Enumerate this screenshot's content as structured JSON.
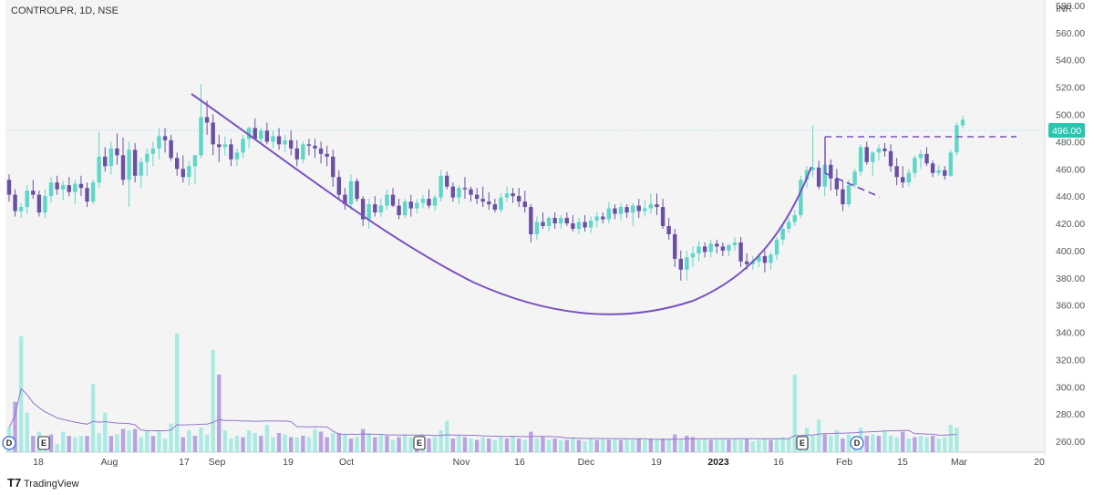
{
  "title": "CONTROLPR, 1D, NSE",
  "currency": "INR",
  "brand": "TradingView",
  "last_price": "496.00",
  "colors": {
    "up": "#5ed6c8",
    "down": "#6a4fa3",
    "pattern": "#7b52c0",
    "vol_up": "#a9ebe3",
    "vol_down": "#b7a3e0",
    "price_label": "#26c6b0",
    "vol_ma": "#9575cd"
  },
  "y_axis": {
    "ticks": [
      "580.00",
      "560.00",
      "540.00",
      "520.00",
      "500.00",
      "480.00",
      "460.00",
      "440.00",
      "420.00",
      "400.00",
      "380.00",
      "360.00",
      "340.00",
      "320.00",
      "300.00",
      "280.00",
      "260.00"
    ]
  },
  "x_axis": {
    "labels": [
      "18",
      "Aug",
      "17",
      "Sep",
      "19",
      "Oct",
      "Nov",
      "16",
      "Dec",
      "19",
      "2023",
      "16",
      "Feb",
      "15",
      "Mar",
      "20"
    ]
  },
  "events": [
    {
      "type": "dividend",
      "label": "D"
    },
    {
      "type": "earnings",
      "label": "E"
    },
    {
      "type": "earnings",
      "label": "E"
    },
    {
      "type": "earnings",
      "label": "E"
    },
    {
      "type": "dividend",
      "label": "D"
    }
  ],
  "chart_data": {
    "type": "candlestick",
    "symbol": "CONTROLPR",
    "interval": "1D",
    "exchange": "NSE",
    "ylim": [
      252,
      584
    ],
    "price": [
      [
        452,
        456,
        436,
        441
      ],
      [
        441,
        445,
        425,
        429
      ],
      [
        429,
        435,
        424,
        432
      ],
      [
        432,
        448,
        427,
        444
      ],
      [
        444,
        452,
        438,
        441
      ],
      [
        441,
        444,
        425,
        428
      ],
      [
        428,
        445,
        424,
        440
      ],
      [
        440,
        454,
        435,
        450
      ],
      [
        450,
        455,
        441,
        445
      ],
      [
        445,
        451,
        437,
        448
      ],
      [
        448,
        454,
        440,
        443
      ],
      [
        443,
        452,
        434,
        449
      ],
      [
        449,
        455,
        440,
        446
      ],
      [
        446,
        450,
        432,
        436
      ],
      [
        436,
        452,
        434,
        450
      ],
      [
        450,
        487,
        446,
        469
      ],
      [
        469,
        476,
        458,
        462
      ],
      [
        462,
        480,
        456,
        475
      ],
      [
        475,
        486,
        463,
        470
      ],
      [
        470,
        483,
        448,
        452
      ],
      [
        452,
        480,
        432,
        474
      ],
      [
        474,
        479,
        450,
        455
      ],
      [
        455,
        468,
        446,
        465
      ],
      [
        465,
        475,
        455,
        471
      ],
      [
        471,
        480,
        462,
        475
      ],
      [
        475,
        490,
        467,
        484
      ],
      [
        484,
        490,
        472,
        481
      ],
      [
        481,
        485,
        466,
        468
      ],
      [
        468,
        472,
        455,
        460
      ],
      [
        460,
        470,
        450,
        454
      ],
      [
        454,
        466,
        448,
        462
      ],
      [
        462,
        470,
        449,
        470
      ],
      [
        470,
        522,
        468,
        498
      ],
      [
        498,
        510,
        485,
        494
      ],
      [
        494,
        500,
        470,
        478
      ],
      [
        478,
        485,
        465,
        476
      ],
      [
        476,
        484,
        470,
        478
      ],
      [
        478,
        482,
        462,
        467
      ],
      [
        467,
        475,
        462,
        472
      ],
      [
        472,
        485,
        468,
        482
      ],
      [
        482,
        491,
        475,
        490
      ],
      [
        490,
        497,
        482,
        482
      ],
      [
        482,
        490,
        478,
        488
      ],
      [
        488,
        494,
        478,
        480
      ],
      [
        480,
        488,
        475,
        484
      ],
      [
        484,
        490,
        474,
        478
      ],
      [
        478,
        485,
        472,
        481
      ],
      [
        481,
        488,
        470,
        475
      ],
      [
        475,
        481,
        462,
        467
      ],
      [
        467,
        480,
        464,
        478
      ],
      [
        478,
        482,
        470,
        477
      ],
      [
        477,
        482,
        468,
        475
      ],
      [
        475,
        480,
        464,
        471
      ],
      [
        471,
        477,
        462,
        469
      ],
      [
        469,
        474,
        447,
        454
      ],
      [
        454,
        459,
        438,
        441
      ],
      [
        441,
        446,
        430,
        434
      ],
      [
        434,
        456,
        430,
        451
      ],
      [
        451,
        453,
        436,
        438
      ],
      [
        438,
        440,
        418,
        423
      ],
      [
        423,
        438,
        416,
        434
      ],
      [
        434,
        440,
        425,
        428
      ],
      [
        428,
        438,
        425,
        433
      ],
      [
        433,
        445,
        430,
        441
      ],
      [
        441,
        446,
        432,
        433
      ],
      [
        433,
        438,
        423,
        426
      ],
      [
        426,
        438,
        424,
        436
      ],
      [
        436,
        441,
        425,
        431
      ],
      [
        431,
        438,
        427,
        435
      ],
      [
        435,
        441,
        431,
        438
      ],
      [
        438,
        445,
        431,
        433
      ],
      [
        433,
        441,
        429,
        439
      ],
      [
        439,
        459,
        436,
        455
      ],
      [
        455,
        458,
        445,
        447
      ],
      [
        447,
        450,
        436,
        439
      ],
      [
        439,
        448,
        434,
        446
      ],
      [
        446,
        454,
        438,
        445
      ],
      [
        445,
        447,
        436,
        441
      ],
      [
        441,
        446,
        434,
        438
      ],
      [
        438,
        447,
        432,
        436
      ],
      [
        436,
        443,
        430,
        434
      ],
      [
        434,
        438,
        428,
        430
      ],
      [
        430,
        442,
        428,
        439
      ],
      [
        439,
        447,
        436,
        442
      ],
      [
        442,
        446,
        435,
        440
      ],
      [
        440,
        446,
        432,
        436
      ],
      [
        436,
        444,
        428,
        432
      ],
      [
        432,
        434,
        406,
        412
      ],
      [
        412,
        425,
        408,
        421
      ],
      [
        421,
        428,
        416,
        418
      ],
      [
        418,
        425,
        414,
        424
      ],
      [
        424,
        428,
        416,
        420
      ],
      [
        420,
        426,
        416,
        424
      ],
      [
        424,
        428,
        418,
        420
      ],
      [
        420,
        426,
        414,
        416
      ],
      [
        416,
        424,
        412,
        421
      ],
      [
        421,
        426,
        414,
        417
      ],
      [
        417,
        425,
        413,
        422
      ],
      [
        422,
        428,
        417,
        425
      ],
      [
        425,
        428,
        420,
        423
      ],
      [
        423,
        436,
        420,
        431
      ],
      [
        431,
        434,
        423,
        427
      ],
      [
        427,
        435,
        422,
        432
      ],
      [
        432,
        434,
        424,
        428
      ],
      [
        428,
        435,
        418,
        433
      ],
      [
        433,
        438,
        424,
        429
      ],
      [
        429,
        437,
        425,
        431
      ],
      [
        431,
        442,
        427,
        434
      ],
      [
        434,
        442,
        426,
        432
      ],
      [
        432,
        438,
        416,
        418
      ],
      [
        418,
        424,
        408,
        412
      ],
      [
        412,
        416,
        388,
        394
      ],
      [
        394,
        400,
        378,
        386
      ],
      [
        386,
        400,
        378,
        395
      ],
      [
        395,
        403,
        388,
        398
      ],
      [
        398,
        407,
        392,
        403
      ],
      [
        403,
        406,
        395,
        399
      ],
      [
        399,
        408,
        395,
        405
      ],
      [
        405,
        408,
        398,
        403
      ],
      [
        403,
        406,
        396,
        400
      ],
      [
        400,
        405,
        396,
        404
      ],
      [
        404,
        410,
        400,
        406
      ],
      [
        406,
        410,
        388,
        392
      ],
      [
        392,
        398,
        386,
        390
      ],
      [
        390,
        396,
        386,
        392
      ],
      [
        392,
        398,
        388,
        396
      ],
      [
        396,
        400,
        384,
        391
      ],
      [
        391,
        399,
        386,
        397
      ],
      [
        397,
        410,
        393,
        408
      ],
      [
        408,
        419,
        404,
        416
      ],
      [
        416,
        424,
        413,
        421
      ],
      [
        421,
        430,
        418,
        426
      ],
      [
        426,
        455,
        424,
        452
      ],
      [
        452,
        462,
        446,
        459
      ],
      [
        459,
        492,
        454,
        461
      ],
      [
        461,
        466,
        445,
        447
      ],
      [
        447,
        465,
        440,
        463
      ],
      [
        463,
        467,
        444,
        453
      ],
      [
        453,
        460,
        440,
        445
      ],
      [
        445,
        452,
        429,
        434
      ],
      [
        434,
        452,
        432,
        448
      ],
      [
        448,
        460,
        446,
        458
      ],
      [
        458,
        478,
        455,
        476
      ],
      [
        476,
        480,
        463,
        465
      ],
      [
        465,
        473,
        455,
        472
      ],
      [
        472,
        478,
        466,
        475
      ],
      [
        475,
        479,
        469,
        473
      ],
      [
        473,
        478,
        458,
        462
      ],
      [
        462,
        468,
        448,
        454
      ],
      [
        454,
        462,
        446,
        450
      ],
      [
        450,
        460,
        447,
        457
      ],
      [
        457,
        470,
        454,
        468
      ],
      [
        468,
        474,
        460,
        471
      ],
      [
        471,
        476,
        462,
        464
      ],
      [
        464,
        466,
        454,
        457
      ],
      [
        457,
        463,
        455,
        459
      ],
      [
        459,
        462,
        452,
        455
      ],
      [
        455,
        474,
        454,
        472
      ],
      [
        472,
        494,
        470,
        492
      ],
      [
        492,
        499,
        490,
        496
      ]
    ],
    "volume": [
      [
        270,
        1
      ],
      [
        289,
        0
      ],
      [
        337,
        1
      ],
      [
        281,
        1
      ],
      [
        264,
        0
      ],
      [
        267,
        1
      ],
      [
        263,
        1
      ],
      [
        265,
        0
      ],
      [
        258,
        1
      ],
      [
        267,
        1
      ],
      [
        264,
        0
      ],
      [
        263,
        1
      ],
      [
        264,
        1
      ],
      [
        264,
        0
      ],
      [
        302,
        1
      ],
      [
        266,
        1
      ],
      [
        281,
        1
      ],
      [
        264,
        0
      ],
      [
        265,
        1
      ],
      [
        269,
        0
      ],
      [
        268,
        1
      ],
      [
        269,
        0
      ],
      [
        263,
        1
      ],
      [
        268,
        1
      ],
      [
        264,
        0
      ],
      [
        268,
        1
      ],
      [
        262,
        1
      ],
      [
        273,
        1
      ],
      [
        339,
        1
      ],
      [
        263,
        0
      ],
      [
        268,
        1
      ],
      [
        264,
        0
      ],
      [
        270,
        1
      ],
      [
        265,
        1
      ],
      [
        327,
        1
      ],
      [
        309,
        0
      ],
      [
        268,
        1
      ],
      [
        262,
        1
      ],
      [
        264,
        1
      ],
      [
        263,
        0
      ],
      [
        268,
        1
      ],
      [
        266,
        1
      ],
      [
        264,
        0
      ],
      [
        272,
        1
      ],
      [
        263,
        1
      ],
      [
        266,
        0
      ],
      [
        265,
        1
      ],
      [
        263,
        0
      ],
      [
        263,
        1
      ],
      [
        264,
        0
      ],
      [
        263,
        1
      ],
      [
        269,
        1
      ],
      [
        267,
        0
      ],
      [
        263,
        0
      ],
      [
        266,
        1
      ],
      [
        266,
        0
      ],
      [
        265,
        1
      ],
      [
        262,
        0
      ],
      [
        263,
        1
      ],
      [
        269,
        0
      ],
      [
        266,
        1
      ],
      [
        263,
        0
      ],
      [
        265,
        1
      ],
      [
        264,
        0
      ],
      [
        261,
        1
      ],
      [
        263,
        0
      ],
      [
        265,
        1
      ],
      [
        263,
        1
      ],
      [
        262,
        0
      ],
      [
        265,
        1
      ],
      [
        262,
        0
      ],
      [
        263,
        1
      ],
      [
        268,
        1
      ],
      [
        275,
        1
      ],
      [
        262,
        0
      ],
      [
        264,
        1
      ],
      [
        263,
        0
      ],
      [
        262,
        1
      ],
      [
        261,
        0
      ],
      [
        263,
        1
      ],
      [
        262,
        0
      ],
      [
        261,
        1
      ],
      [
        263,
        1
      ],
      [
        262,
        0
      ],
      [
        264,
        1
      ],
      [
        262,
        0
      ],
      [
        261,
        1
      ],
      [
        267,
        0
      ],
      [
        262,
        1
      ],
      [
        263,
        0
      ],
      [
        261,
        1
      ],
      [
        262,
        0
      ],
      [
        261,
        1
      ],
      [
        261,
        0
      ],
      [
        262,
        1
      ],
      [
        261,
        0
      ],
      [
        260,
        1
      ],
      [
        262,
        1
      ],
      [
        261,
        0
      ],
      [
        262,
        1
      ],
      [
        261,
        0
      ],
      [
        262,
        1
      ],
      [
        261,
        0
      ],
      [
        262,
        1
      ],
      [
        261,
        1
      ],
      [
        262,
        0
      ],
      [
        261,
        1
      ],
      [
        262,
        0
      ],
      [
        261,
        1
      ],
      [
        262,
        0
      ],
      [
        262,
        1
      ],
      [
        265,
        0
      ],
      [
        261,
        1
      ],
      [
        264,
        0
      ],
      [
        263,
        0
      ],
      [
        261,
        1
      ],
      [
        262,
        1
      ],
      [
        261,
        0
      ],
      [
        262,
        1
      ],
      [
        262,
        1
      ],
      [
        261,
        0
      ],
      [
        262,
        1
      ],
      [
        261,
        1
      ],
      [
        262,
        0
      ],
      [
        260,
        1
      ],
      [
        261,
        1
      ],
      [
        262,
        1
      ],
      [
        261,
        0
      ],
      [
        262,
        1
      ],
      [
        263,
        1
      ],
      [
        262,
        1
      ],
      [
        309,
        1
      ],
      [
        264,
        1
      ],
      [
        270,
        1
      ],
      [
        264,
        1
      ],
      [
        276,
        1
      ],
      [
        265,
        0
      ],
      [
        264,
        1
      ],
      [
        268,
        1
      ],
      [
        262,
        0
      ],
      [
        265,
        1
      ],
      [
        264,
        1
      ],
      [
        270,
        1
      ],
      [
        264,
        0
      ],
      [
        265,
        1
      ],
      [
        264,
        0
      ],
      [
        268,
        1
      ],
      [
        264,
        1
      ],
      [
        263,
        1
      ],
      [
        267,
        0
      ],
      [
        262,
        1
      ],
      [
        263,
        0
      ],
      [
        264,
        1
      ],
      [
        263,
        1
      ],
      [
        264,
        0
      ],
      [
        262,
        1
      ],
      [
        263,
        1
      ],
      [
        272,
        1
      ],
      [
        270,
        1
      ]
    ]
  }
}
